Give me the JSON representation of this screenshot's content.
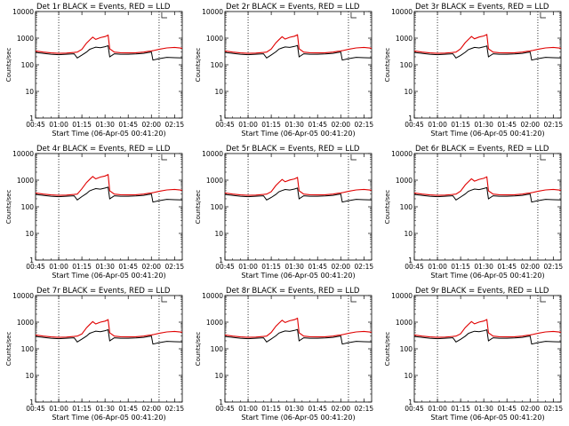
{
  "chart_data": {
    "type": "line",
    "layout": "3x3 grid",
    "y_scale": "log",
    "ylim": [
      1,
      10000
    ],
    "ytick_labels": [
      "1",
      "10",
      "100",
      "1000",
      "10000"
    ],
    "xlim": [
      "00:45",
      "02:20"
    ],
    "xtick_labels": [
      "00:45",
      "01:00",
      "01:15",
      "01:30",
      "01:45",
      "02:00",
      "02:15"
    ],
    "xlabel": "Start Time (06-Apr-05 00:41:20)",
    "ylabel": "Counts/sec",
    "series_colors": {
      "events": "#000000",
      "lld": "#e00000"
    },
    "marker_times": [
      "01:00",
      "02:05"
    ],
    "panels": [
      {
        "title": "Det 1r BLACK = Events, RED = LLD"
      },
      {
        "title": "Det 2r BLACK = Events, RED = LLD"
      },
      {
        "title": "Det 3r BLACK = Events, RED = LLD"
      },
      {
        "title": "Det 4r BLACK = Events, RED = LLD"
      },
      {
        "title": "Det 5r BLACK = Events, RED = LLD"
      },
      {
        "title": "Det 6r BLACK = Events, RED = LLD"
      },
      {
        "title": "Det 7r BLACK = Events, RED = LLD"
      },
      {
        "title": "Det 8r BLACK = Events, RED = LLD"
      },
      {
        "title": "Det 9r BLACK = Events, RED = LLD"
      }
    ],
    "events_profile": [
      [
        "00:45",
        290
      ],
      [
        "00:50",
        270
      ],
      [
        "00:55",
        250
      ],
      [
        "01:00",
        240
      ],
      [
        "01:05",
        250
      ],
      [
        "01:10",
        260
      ],
      [
        "01:12",
        180
      ],
      [
        "01:15",
        230
      ],
      [
        "01:18",
        300
      ],
      [
        "01:20",
        380
      ],
      [
        "01:22",
        420
      ],
      [
        "01:24",
        460
      ],
      [
        "01:27",
        440
      ],
      [
        "01:30",
        480
      ],
      [
        "01:32",
        520
      ],
      [
        "01:33",
        200
      ],
      [
        "01:36",
        260
      ],
      [
        "01:40",
        250
      ],
      [
        "01:45",
        250
      ],
      [
        "01:50",
        255
      ],
      [
        "01:55",
        270
      ],
      [
        "01:58",
        290
      ],
      [
        "02:00",
        300
      ],
      [
        "02:01",
        150
      ],
      [
        "02:05",
        170
      ],
      [
        "02:10",
        190
      ],
      [
        "02:15",
        185
      ],
      [
        "02:20",
        180
      ]
    ],
    "lld_profile": [
      [
        "00:45",
        330
      ],
      [
        "00:50",
        300
      ],
      [
        "00:55",
        280
      ],
      [
        "01:00",
        270
      ],
      [
        "01:05",
        275
      ],
      [
        "01:10",
        290
      ],
      [
        "01:12",
        300
      ],
      [
        "01:15",
        380
      ],
      [
        "01:18",
        650
      ],
      [
        "01:20",
        850
      ],
      [
        "01:22",
        1100
      ],
      [
        "01:24",
        900
      ],
      [
        "01:27",
        1050
      ],
      [
        "01:30",
        1150
      ],
      [
        "01:32",
        1300
      ],
      [
        "01:33",
        400
      ],
      [
        "01:36",
        300
      ],
      [
        "01:40",
        285
      ],
      [
        "01:45",
        280
      ],
      [
        "01:50",
        285
      ],
      [
        "01:55",
        300
      ],
      [
        "01:58",
        320
      ],
      [
        "02:00",
        330
      ],
      [
        "02:01",
        340
      ],
      [
        "02:05",
        380
      ],
      [
        "02:10",
        430
      ],
      [
        "02:15",
        450
      ],
      [
        "02:20",
        420
      ]
    ]
  }
}
